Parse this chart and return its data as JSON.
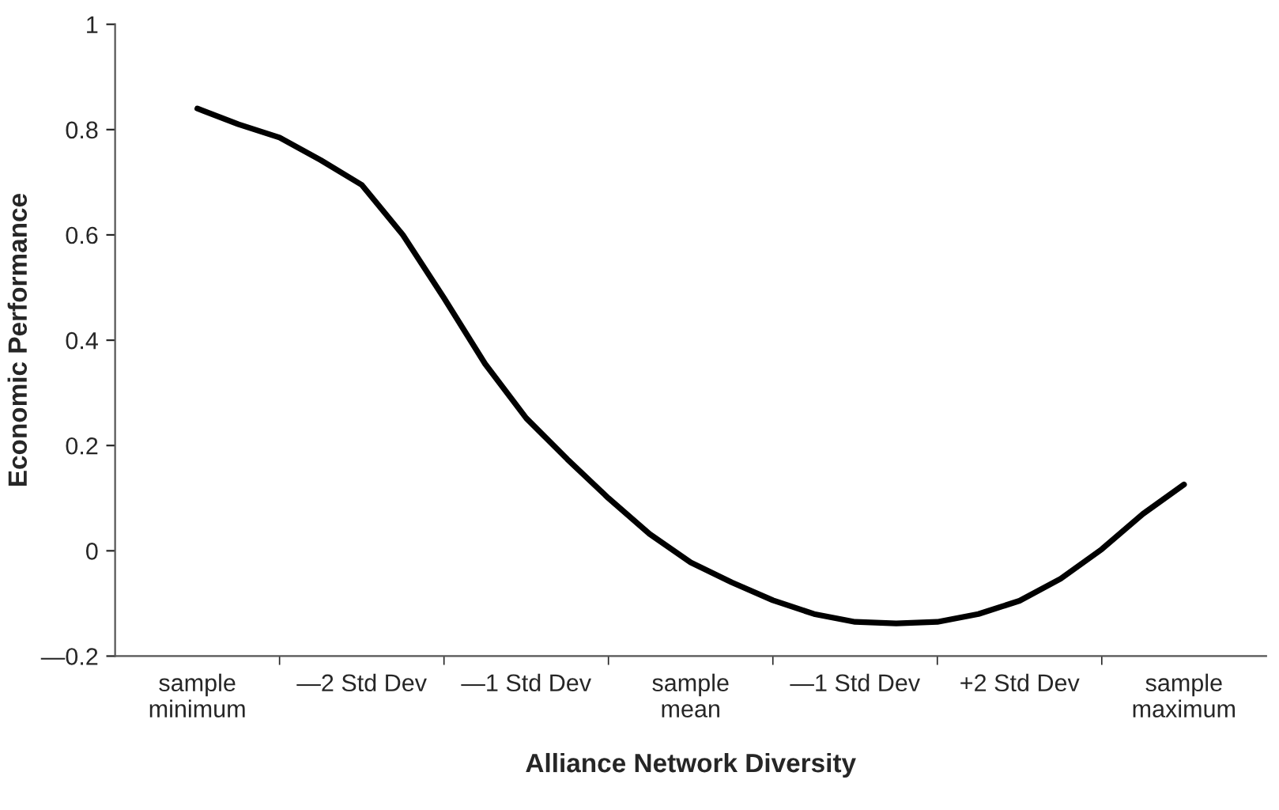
{
  "chart_data": {
    "type": "line",
    "xlabel": "Alliance Network Diversity",
    "ylabel": "Economic Performance",
    "categories": [
      "sample\nminimum",
      null,
      null,
      null,
      "—2 Std Dev",
      null,
      null,
      null,
      "—1 Std Dev",
      null,
      null,
      null,
      "sample\nmean",
      null,
      null,
      null,
      "—1 Std Dev",
      null,
      null,
      null,
      "+2 Std Dev",
      null,
      null,
      null,
      "sample\nmaximum"
    ],
    "series": [
      {
        "color": "#000000",
        "values": [
          0.84,
          0.81,
          0.785,
          0.742,
          0.695,
          0.6,
          0.48,
          0.355,
          0.252,
          0.174,
          0.1,
          0.032,
          -0.022,
          -0.06,
          -0.094,
          -0.12,
          -0.135,
          -0.138,
          -0.135,
          -0.12,
          -0.095,
          -0.053,
          0.003,
          0.07,
          0.126
        ]
      }
    ],
    "ylim": [
      -0.2,
      1
    ],
    "yticks": [
      {
        "value": -0.2,
        "label": "—0.2"
      },
      0,
      0.2,
      0.4,
      0.6,
      0.8,
      1
    ],
    "grid": false,
    "marker": "none",
    "line_style": "solid"
  }
}
